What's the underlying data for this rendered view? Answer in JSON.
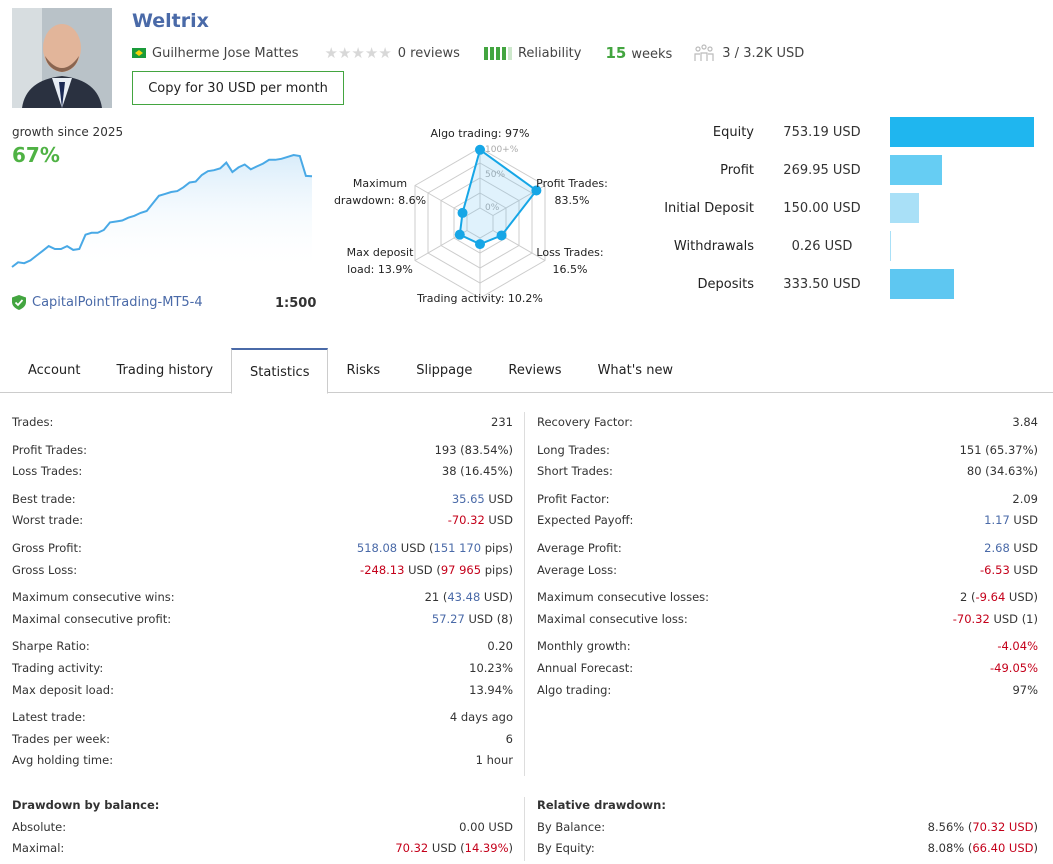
{
  "header": {
    "title": "Weltrix",
    "author": "Guilherme Jose Mattes",
    "country_flag": "brazil-flag-icon",
    "rating_stars": 0,
    "reviews": "0 reviews",
    "reliability_label": "Reliability",
    "reliability_level": "4 of 5",
    "weeks_num": "15",
    "weeks_label": "weeks",
    "subscribers": "3 / 3.2K USD",
    "copy_button": "Copy for 30 USD per month"
  },
  "growth": {
    "label": "growth since 2025",
    "value": "67%",
    "server": "CapitalPointTrading-MT5-4",
    "leverage": "1:500",
    "series": [
      0,
      3.5,
      2.8,
      4.9,
      8.4,
      11.9,
      15.4,
      13.3,
      13.3,
      15.4,
      12.6,
      13.3,
      23.8,
      25.2,
      25.2,
      27.3,
      32.9,
      33.6,
      34.3,
      36.4,
      37.8,
      39.9,
      41.3,
      46.9,
      52.5,
      53.9,
      55.3,
      56,
      58.8,
      62.3,
      63,
      67.9,
      70.7,
      71.4,
      72.8,
      77,
      70,
      73.5,
      75.6,
      72.1,
      74.2,
      76.3,
      79.1,
      79.1,
      79.8,
      81.2,
      82.6,
      81.9,
      67.2,
      67
    ]
  },
  "radar": {
    "ring_labels": [
      "100+%",
      "50%",
      "0%"
    ],
    "axes": [
      {
        "label1": "Algo trading: 97%",
        "label2": "",
        "value": 97
      },
      {
        "label1": "Profit Trades:",
        "label2": "83.5%",
        "value": 83.5
      },
      {
        "label1": "Loss Trades:",
        "label2": "16.5%",
        "value": 16.5
      },
      {
        "label1": "Trading activity: 10.2%",
        "label2": "",
        "value": 10.2
      },
      {
        "label1": "Max deposit",
        "label2": "load: 13.9%",
        "value": 13.9
      },
      {
        "label1": "Maximum",
        "label2": "drawdown: 8.6%",
        "value": 8.6
      }
    ]
  },
  "balance": [
    {
      "label": "Equity",
      "value": "753.19 USD",
      "amount": 753.19,
      "color": "#1fb6ef"
    },
    {
      "label": "Profit",
      "value": "269.95 USD",
      "amount": 269.95,
      "color": "#66cdf3"
    },
    {
      "label": "Initial Deposit",
      "value": "150.00 USD",
      "amount": 150.0,
      "color": "#a9e0f7"
    },
    {
      "label": "Withdrawals",
      "value": "0.26 USD",
      "amount": 0.26,
      "color": "#a9e0f7"
    },
    {
      "label": "Deposits",
      "value": "333.50 USD",
      "amount": 333.5,
      "color": "#5ec7f1"
    }
  ],
  "tabs": [
    "Account",
    "Trading history",
    "Statistics",
    "Risks",
    "Slippage",
    "Reviews",
    "What's new"
  ],
  "active_tab": "Statistics",
  "stats_left": [
    [
      {
        "k": "Trades:",
        "v": [
          {
            "t": "231"
          }
        ]
      }
    ],
    [
      {
        "k": "Profit Trades:",
        "v": [
          {
            "t": "193 (83.54%)"
          }
        ]
      },
      {
        "k": "Loss Trades:",
        "v": [
          {
            "t": "38 (16.45%)"
          }
        ]
      }
    ],
    [
      {
        "k": "Best trade:",
        "v": [
          {
            "t": "35.65",
            "c": "b"
          },
          {
            "t": " USD"
          }
        ]
      },
      {
        "k": "Worst trade:",
        "v": [
          {
            "t": "-70.32",
            "c": "r"
          },
          {
            "t": " USD"
          }
        ]
      }
    ],
    [
      {
        "k": "Gross Profit:",
        "v": [
          {
            "t": "518.08",
            "c": "b"
          },
          {
            "t": " USD ("
          },
          {
            "t": "151 170",
            "c": "b"
          },
          {
            "t": " pips)"
          }
        ]
      },
      {
        "k": "Gross Loss:",
        "v": [
          {
            "t": "-248.13",
            "c": "r"
          },
          {
            "t": " USD ("
          },
          {
            "t": "97 965",
            "c": "r"
          },
          {
            "t": " pips)"
          }
        ]
      }
    ],
    [
      {
        "k": "Maximum consecutive wins:",
        "v": [
          {
            "t": "21 ("
          },
          {
            "t": "43.48",
            "c": "b"
          },
          {
            "t": " USD)"
          }
        ]
      },
      {
        "k": "Maximal consecutive profit:",
        "v": [
          {
            "t": "57.27",
            "c": "b"
          },
          {
            "t": " USD (8)"
          }
        ]
      }
    ],
    [
      {
        "k": "Sharpe Ratio:",
        "v": [
          {
            "t": "0.20"
          }
        ]
      },
      {
        "k": "Trading activity:",
        "v": [
          {
            "t": "10.23%"
          }
        ]
      },
      {
        "k": "Max deposit load:",
        "v": [
          {
            "t": "13.94%"
          }
        ]
      }
    ],
    [
      {
        "k": "Latest trade:",
        "v": [
          {
            "t": "4 days ago"
          }
        ]
      },
      {
        "k": "Trades per week:",
        "v": [
          {
            "t": "6"
          }
        ]
      },
      {
        "k": "Avg holding time:",
        "v": [
          {
            "t": "1 hour"
          }
        ]
      }
    ]
  ],
  "stats_right": [
    [
      {
        "k": "Recovery Factor:",
        "v": [
          {
            "t": "3.84"
          }
        ]
      }
    ],
    [
      {
        "k": "Long Trades:",
        "v": [
          {
            "t": "151 (65.37%)"
          }
        ]
      },
      {
        "k": "Short Trades:",
        "v": [
          {
            "t": "80 (34.63%)"
          }
        ]
      }
    ],
    [
      {
        "k": "Profit Factor:",
        "v": [
          {
            "t": "2.09"
          }
        ]
      },
      {
        "k": "Expected Payoff:",
        "v": [
          {
            "t": "1.17",
            "c": "b"
          },
          {
            "t": " USD"
          }
        ]
      }
    ],
    [
      {
        "k": "Average Profit:",
        "v": [
          {
            "t": "2.68",
            "c": "b"
          },
          {
            "t": " USD"
          }
        ]
      },
      {
        "k": "Average Loss:",
        "v": [
          {
            "t": "-6.53",
            "c": "r"
          },
          {
            "t": " USD"
          }
        ]
      }
    ],
    [
      {
        "k": "Maximum consecutive losses:",
        "v": [
          {
            "t": "2 ("
          },
          {
            "t": "-9.64",
            "c": "r"
          },
          {
            "t": " USD)"
          }
        ]
      },
      {
        "k": "Maximal consecutive loss:",
        "v": [
          {
            "t": "-70.32",
            "c": "r"
          },
          {
            "t": " USD (1)"
          }
        ]
      }
    ],
    [
      {
        "k": "Monthly growth:",
        "v": [
          {
            "t": "-4.04%",
            "c": "r"
          }
        ]
      },
      {
        "k": "Annual Forecast:",
        "v": [
          {
            "t": "-49.05%",
            "c": "r"
          }
        ]
      },
      {
        "k": "Algo trading:",
        "v": [
          {
            "t": "97%"
          }
        ]
      }
    ]
  ],
  "drawdown_left": {
    "title": "Drawdown by balance:",
    "rows": [
      {
        "k": "Absolute:",
        "v": [
          {
            "t": "0.00 USD"
          }
        ]
      },
      {
        "k": "Maximal:",
        "v": [
          {
            "t": "70.32",
            "c": "r"
          },
          {
            "t": " USD ("
          },
          {
            "t": "14.39%",
            "c": "r"
          },
          {
            "t": ")"
          }
        ]
      }
    ]
  },
  "drawdown_right": {
    "title": "Relative drawdown:",
    "rows": [
      {
        "k": "By Balance:",
        "v": [
          {
            "t": "8.56% ("
          },
          {
            "t": "70.32 USD",
            "c": "r"
          },
          {
            "t": ")"
          }
        ]
      },
      {
        "k": "By Equity:",
        "v": [
          {
            "t": "8.08% ("
          },
          {
            "t": "66.40 USD",
            "c": "r"
          },
          {
            "t": ")"
          }
        ]
      }
    ]
  },
  "colors": {
    "accent": "#4a6aa8",
    "positive": "#43a540",
    "negative": "#c4001a",
    "chart": "#1fa8e8"
  }
}
